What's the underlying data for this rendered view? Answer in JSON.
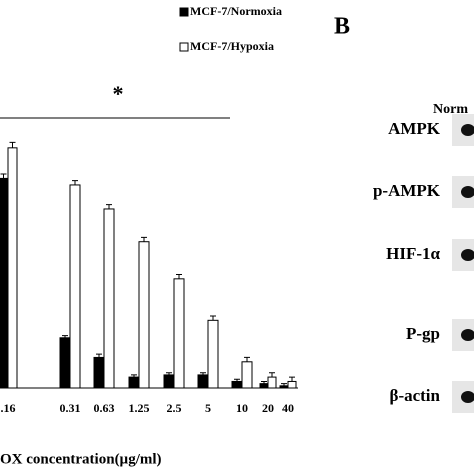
{
  "chart_data": {
    "type": "bar",
    "x_label": "OX concentration(µg/ml)",
    "annotation": "*",
    "categories": [
      ".16",
      "0.31",
      "0.63",
      "1.25",
      "2.5",
      "5",
      "10",
      "20",
      "40"
    ],
    "series": [
      {
        "name": "MCF-7/Normoxia",
        "color": "#000000",
        "values": [
          96,
          23,
          14,
          5,
          6,
          6,
          3,
          2,
          1
        ],
        "errors": [
          2,
          1,
          1.5,
          1,
          1,
          1,
          1,
          1,
          1
        ]
      },
      {
        "name": "MCF-7/Hypoxia",
        "color": "#ffffff",
        "values": [
          110,
          93,
          82,
          67,
          50,
          31,
          12,
          5,
          3
        ],
        "errors": [
          2.5,
          2,
          2,
          2,
          2,
          2,
          2,
          2,
          2
        ]
      }
    ],
    "ylim": [
      0,
      120
    ]
  },
  "panel_b": {
    "label": "B",
    "column_header": "Norm",
    "rows": [
      "AMPK",
      "p-AMPK",
      "HIF-1α",
      "P-gp",
      "β-actin"
    ]
  }
}
